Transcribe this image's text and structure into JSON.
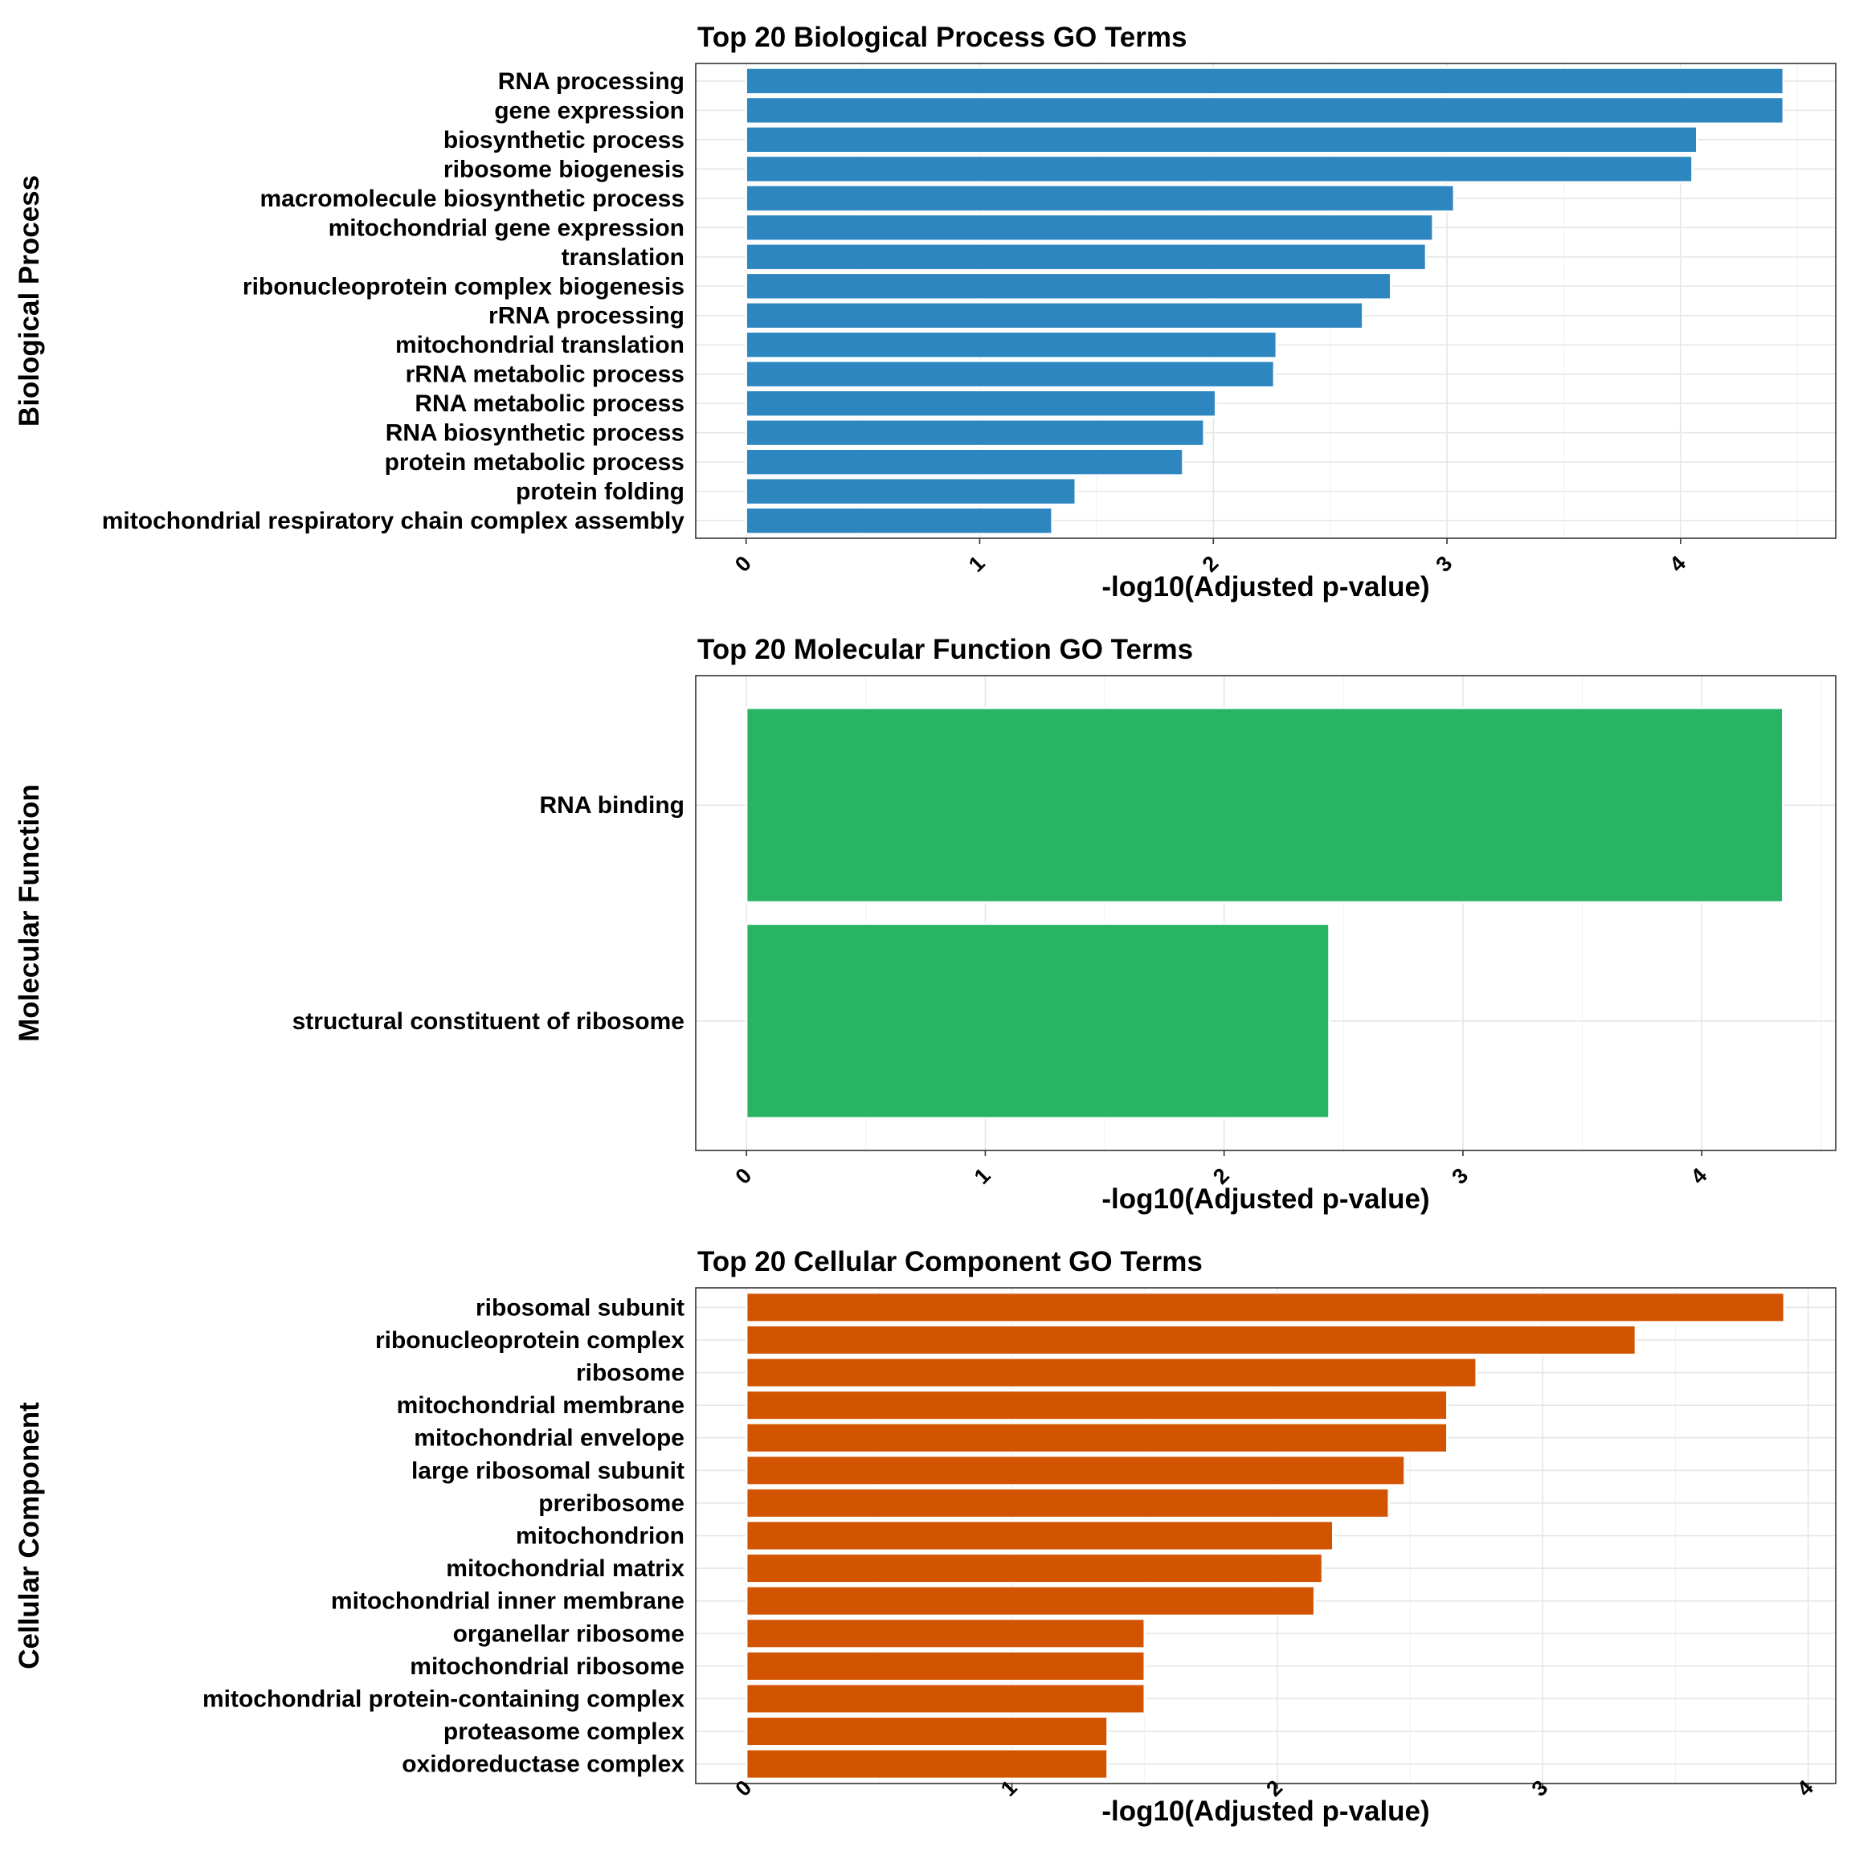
{
  "chart_data": [
    {
      "type": "bar",
      "orientation": "horizontal",
      "title": "Top 20 Biological Process GO Terms",
      "xlabel": "-log10(Adjusted p-value)",
      "ylabel": "Biological Process",
      "color": "#2E86C1",
      "xlim": [
        -0.2156,
        4.664
      ],
      "xticks": [
        "0",
        "1",
        "2",
        "3",
        "4"
      ],
      "grid": true,
      "categories": [
        "RNA processing",
        "gene expression",
        "biosynthetic process",
        "ribosome biogenesis",
        "macromolecule biosynthetic process",
        "mitochondrial gene expression",
        "translation",
        "ribonucleoprotein complex biogenesis",
        "rRNA processing",
        "mitochondrial translation",
        "rRNA metabolic process",
        "RNA metabolic process",
        "RNA biosynthetic process",
        "protein metabolic process",
        "protein folding",
        "mitochondrial respiratory chain complex assembly"
      ],
      "values": [
        4.44,
        4.44,
        4.07,
        4.05,
        3.03,
        2.94,
        2.91,
        2.76,
        2.64,
        2.27,
        2.26,
        2.01,
        1.96,
        1.87,
        1.41,
        1.31
      ]
    },
    {
      "type": "bar",
      "orientation": "horizontal",
      "title": "Top 20 Molecular Function GO Terms",
      "xlabel": "-log10(Adjusted p-value)",
      "ylabel": "Molecular Function",
      "color": "#28B463",
      "xlim": [
        -0.2124,
        4.561
      ],
      "xticks": [
        "0",
        "1",
        "2",
        "3",
        "4"
      ],
      "grid": true,
      "categories": [
        "RNA binding",
        "structural constituent of ribosome"
      ],
      "values": [
        4.34,
        2.44
      ]
    },
    {
      "type": "bar",
      "orientation": "horizontal",
      "title": "Top 20 Cellular Component GO Terms",
      "xlabel": "-log10(Adjusted p-value)",
      "ylabel": "Cellular Component",
      "color": "#D35400",
      "xlim": [
        -0.1912,
        4.104
      ],
      "xticks": [
        "0",
        "1",
        "2",
        "3",
        "4"
      ],
      "grid": true,
      "categories": [
        "ribosomal subunit",
        "ribonucleoprotein complex",
        "ribosome",
        "mitochondrial membrane",
        "mitochondrial envelope",
        "large ribosomal subunit",
        "preribosome",
        "mitochondrion",
        "mitochondrial matrix",
        "mitochondrial inner membrane",
        "organellar ribosome",
        "mitochondrial ribosome",
        "mitochondrial protein-containing complex",
        "proteasome complex",
        "oxidoreductase complex"
      ],
      "values": [
        3.91,
        3.35,
        2.75,
        2.64,
        2.64,
        2.48,
        2.42,
        2.21,
        2.17,
        2.14,
        1.5,
        1.5,
        1.5,
        1.36,
        1.36
      ]
    }
  ]
}
